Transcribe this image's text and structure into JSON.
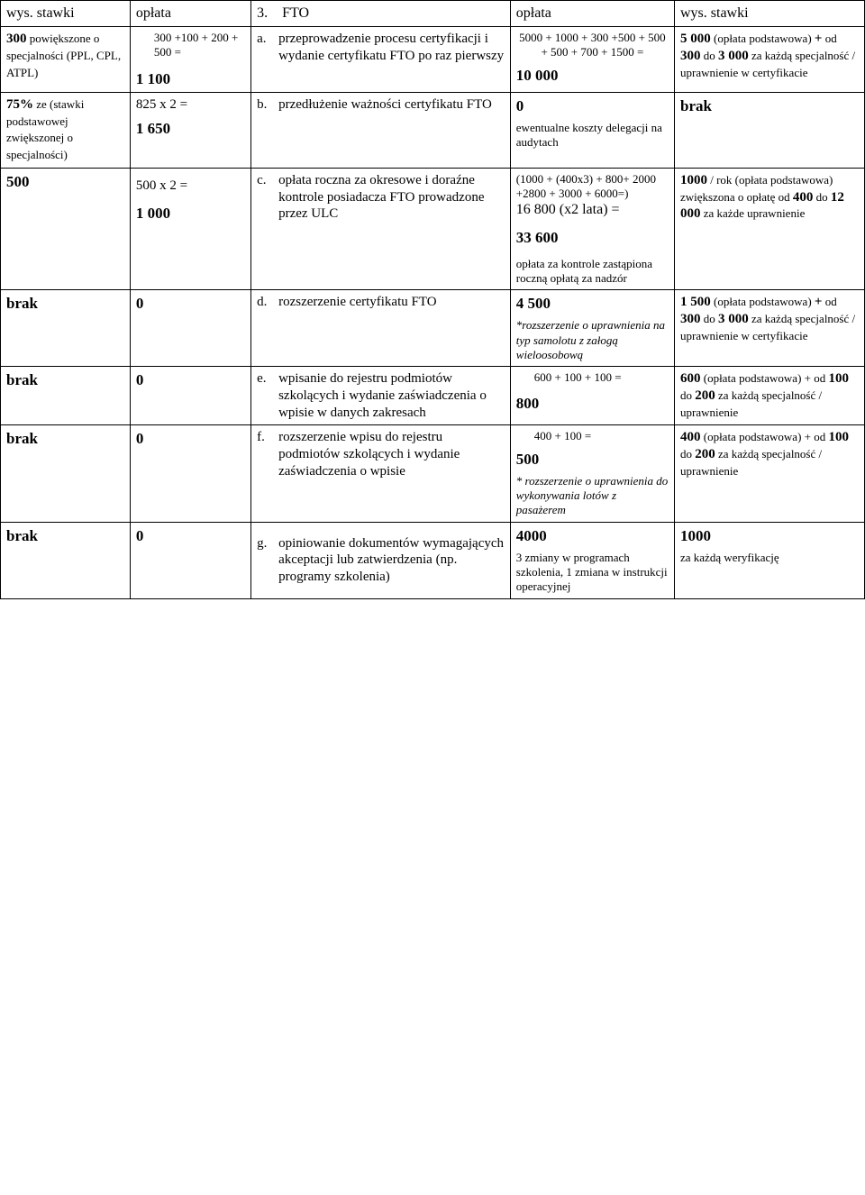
{
  "header": {
    "c1": "wys. stawki",
    "c2": "opłata",
    "c3_num": "3.",
    "c3_label": "FTO",
    "c4": "opłata",
    "c5": "wys. stawki"
  },
  "rows": [
    {
      "c1_bold": "300",
      "c1_rest": " powiększone o specjalności (PPL, CPL, ATPL)",
      "c2_top": "300 +100 + 200 + 500 =",
      "c2_result": "1 100",
      "c3_letter": "a.",
      "c3_text": "przeprowadzenie procesu certyfikacji i wydanie certyfikatu FTO po raz pierwszy",
      "c4_top": "5000 + 1000 + 300 +500 + 500 + 500 + 700 + 1500 =",
      "c4_result": "10 000",
      "c5_parts": [
        {
          "b": "5 000",
          "t": " (opłata podstawowa) "
        },
        {
          "b": "+",
          "t": " od "
        },
        {
          "b": "300",
          "t": " do "
        },
        {
          "b": "3 000",
          "t": " za każdą specjalność / uprawnienie w certyfikacie"
        }
      ]
    },
    {
      "c1_bold": "75%",
      "c1_rest": " ze (stawki podstawowej zwiększonej o specjalności)",
      "c2_top": "825 x 2 =",
      "c2_result": "1 650",
      "c3_letter": "b.",
      "c3_text": "przedłużenie ważności certyfikatu FTO",
      "c4_result": "0",
      "c4_note": "ewentualne koszty delegacji na audytach",
      "c5_bold": "brak"
    },
    {
      "c1_bold": "500",
      "c2_top": "500 x 2 =",
      "c2_result": "1 000",
      "c3_letter": "c.",
      "c3_text": "opłata roczna za okresowe i doraźne kontrole posiadacza FTO prowadzone przez ULC",
      "c4_calc": "(1000 + (400x3) + 800+ 2000 +2800 + 3000 + 6000=)",
      "c4_mid": "16 800 (x2 lata) =",
      "c4_result": "33 600",
      "c4_foot": "opłata za kontrole zastąpiona roczną opłatą za nadzór",
      "c5_parts": [
        {
          "b": "1000",
          "t": " / rok (opłata podstawowa) zwiększona o opłatę od "
        },
        {
          "b": "400",
          "t": " do "
        },
        {
          "b": "12 000",
          "t": " za każde uprawnienie"
        }
      ]
    },
    {
      "c1_bold": "brak",
      "c2_result": "0",
      "c3_letter": "d.",
      "c3_text": "rozszerzenie certyfikatu FTO",
      "c4_result": "4 500",
      "c4_italic": "*rozszerzenie o uprawnienia na typ samolotu z załogą wieloosobową",
      "c5_parts": [
        {
          "b": "1 500",
          "t": " (opłata podstawowa) "
        },
        {
          "b": "+",
          "t": " od "
        },
        {
          "b": "300",
          "t": " do "
        },
        {
          "b": "3 000",
          "t": " za każdą specjalność / uprawnienie w certyfikacie"
        }
      ]
    },
    {
      "c1_bold": "brak",
      "c2_result": "0",
      "c3_letter": "e.",
      "c3_text": "wpisanie do rejestru podmiotów szkolących i wydanie zaświadczenia o wpisie w danych zakresach",
      "c4_top": "600 + 100 + 100  =",
      "c4_result": "800",
      "c5_parts": [
        {
          "b": "600",
          "t": " (opłata podstawowa) + od "
        },
        {
          "b": "100",
          "t": " do "
        },
        {
          "b": "200",
          "t": " za każdą specjalność / uprawnienie"
        }
      ]
    },
    {
      "c1_bold": "brak",
      "c2_result": "0",
      "c3_letter": "f.",
      "c3_text": "rozszerzenie wpisu do rejestru podmiotów szkolących i wydanie zaświadczenia o wpisie",
      "c4_top": "400 + 100 =",
      "c4_result": "500",
      "c4_italic": "* rozszerzenie o uprawnienia do wykonywania lotów z pasażerem",
      "c5_parts": [
        {
          "b": "400",
          "t": " (opłata podstawowa) + od "
        },
        {
          "b": "100",
          "t": " do "
        },
        {
          "b": "200",
          "t": " za każdą specjalność / uprawnienie"
        }
      ]
    },
    {
      "c1_bold": "brak",
      "c2_result": "0",
      "c3_letter": "g.",
      "c3_text": "opiniowanie dokumentów wymagających akceptacji lub zatwierdzenia (np. programy szkolenia)",
      "c4_result": "4000",
      "c4_note": "3 zmiany w programach szkolenia, 1 zmiana w instrukcji operacyjnej",
      "c5_parts": [
        {
          "b": "1000",
          "t": ""
        }
      ],
      "c5_extra": "za każdą weryfikację"
    }
  ]
}
